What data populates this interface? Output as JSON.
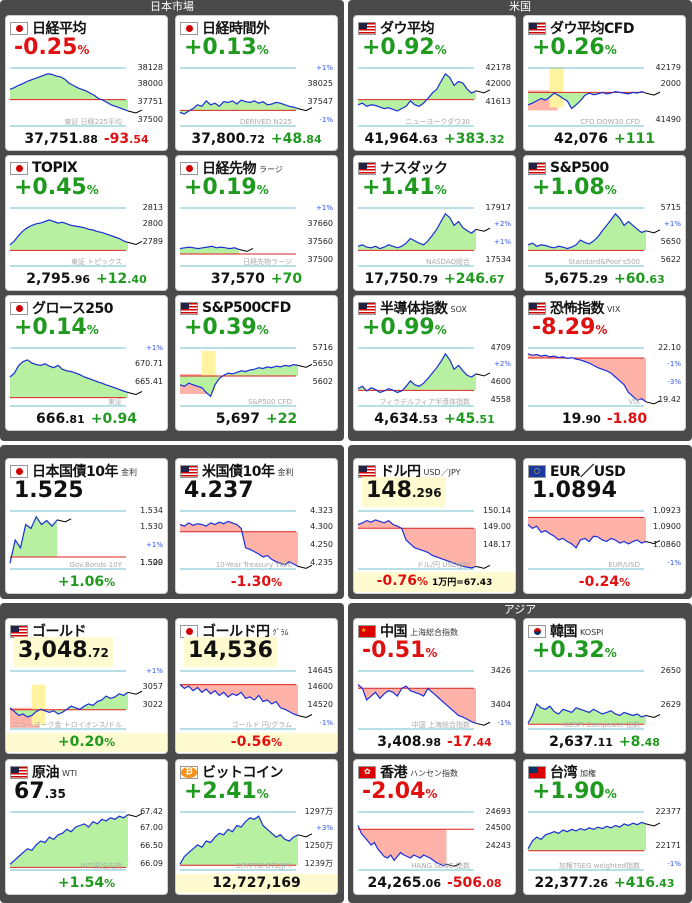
{
  "sections": {
    "japan": "日本市場",
    "us": "米国",
    "asia": "アジア"
  },
  "colors": {
    "up": "#1f9a1f",
    "down": "#e01010",
    "panel": "#4a4a4a"
  },
  "cards": [
    {
      "id": "nikkei",
      "flag": "jp",
      "name": "日経平均",
      "sub": "",
      "pct": "-0.25",
      "pct_unit": "%",
      "dir": "dn",
      "price_int": "37,751",
      "price_dec": ".88",
      "chg_int": "-93",
      "chg_dec": ".54",
      "scale": [
        "38128",
        "38000",
        "37751",
        "37500"
      ],
      "wm": "東証 日経225平均",
      "series": [
        50,
        52,
        55,
        57,
        60,
        62,
        64,
        66,
        68,
        70,
        69,
        67,
        66,
        63,
        58,
        55,
        52,
        50,
        48,
        45,
        42,
        38,
        36,
        33,
        30,
        28,
        26,
        24,
        22
      ],
      "ref": 0.45,
      "fill": "green"
    },
    {
      "id": "nikkei_ot",
      "flag": "jp",
      "name": "日経時間外",
      "sub": "",
      "pct": "+0.13",
      "pct_unit": "%",
      "dir": "up",
      "price_int": "37,800",
      "price_dec": ".72",
      "chg_int": "+48",
      "chg_dec": ".84",
      "scale": [
        "+1%",
        "38025",
        "37547",
        "-1%"
      ],
      "wm": "DERIVED N225",
      "series": [
        20,
        18,
        22,
        25,
        30,
        28,
        35,
        30,
        32,
        28,
        34,
        33,
        35,
        31,
        36,
        34,
        33,
        35,
        32,
        34,
        30,
        31,
        33,
        32,
        30,
        28,
        27,
        25
      ],
      "ref": 0.3,
      "fill": "green"
    },
    {
      "id": "dow",
      "flag": "us",
      "name": "ダウ平均",
      "sub": "",
      "pct": "+0.92",
      "pct_unit": "%",
      "dir": "up",
      "price_int": "41,964",
      "price_dec": ".63",
      "chg_int": "+383",
      "chg_dec": ".32",
      "scale": [
        "42178",
        "42000",
        "41613",
        ""
      ],
      "wm": "ニューヨークダウ30",
      "series": [
        30,
        32,
        28,
        30,
        29,
        27,
        25,
        26,
        24,
        22,
        25,
        28,
        35,
        30,
        28,
        32,
        38,
        45,
        50,
        60,
        70,
        65,
        55,
        60,
        58,
        50,
        45,
        48
      ],
      "ref": 0.45,
      "fill": "green"
    },
    {
      "id": "dowcfd",
      "flag": "us",
      "name": "ダウ平均CFD",
      "sub": "",
      "pct": "+0.26",
      "pct_unit": "%",
      "dir": "up",
      "price_int": "42,076",
      "price_dec": "",
      "chg_int": "+111",
      "chg_dec": "",
      "scale": [
        "42179",
        "2000",
        "",
        "41490"
      ],
      "wm": "CFD DOW30 CFD",
      "series": [
        30,
        32,
        35,
        38,
        36,
        40,
        45,
        42,
        38,
        35,
        25,
        30,
        35,
        42,
        45,
        43,
        44,
        46,
        44,
        45,
        47,
        46,
        45,
        44,
        46,
        45,
        47,
        45
      ],
      "ref": 0.55,
      "fill": "mixed"
    },
    {
      "id": "topix",
      "flag": "jp",
      "name": "TOPIX",
      "sub": "",
      "pct": "+0.45",
      "pct_unit": "%",
      "dir": "up",
      "price_int": "2,795",
      "price_dec": ".96",
      "chg_int": "+12",
      "chg_dec": ".40",
      "scale": [
        "2813",
        "2800",
        "2789",
        ""
      ],
      "wm": "東証 トピックス",
      "series": [
        30,
        35,
        42,
        48,
        52,
        55,
        57,
        58,
        60,
        62,
        60,
        58,
        59,
        57,
        55,
        54,
        53,
        52,
        50,
        49,
        47,
        46,
        44,
        42,
        40,
        38,
        35,
        33
      ],
      "ref": 0.3,
      "fill": "green"
    },
    {
      "id": "nkfut",
      "flag": "jp",
      "name": "日経先物",
      "sub": "ラージ",
      "pct": "+0.19",
      "pct_unit": "%",
      "dir": "up",
      "price_int": "37,570",
      "price_dec": "",
      "chg_int": "+70",
      "chg_dec": "",
      "scale": [
        "+1%",
        "37660",
        "37560",
        "37500"
      ],
      "wm": "日経先物ラージ",
      "series": [
        25,
        26,
        27,
        26,
        25,
        26,
        27,
        28,
        26,
        27,
        26,
        25,
        26,
        24
      ],
      "ref": 0.25,
      "fill": "green",
      "partial": 0.5
    },
    {
      "id": "nasdaq",
      "flag": "us",
      "name": "ナスダック",
      "sub": "",
      "pct": "+1.41",
      "pct_unit": "%",
      "dir": "up",
      "price_int": "17,750",
      "price_dec": ".79",
      "chg_int": "+246",
      "chg_dec": ".67",
      "scale": [
        "17917",
        "+2%",
        "+1%",
        "17534"
      ],
      "wm": "NASDAQ総合",
      "series": [
        28,
        30,
        27,
        26,
        28,
        25,
        27,
        30,
        28,
        26,
        28,
        32,
        38,
        35,
        32,
        30,
        35,
        42,
        50,
        60,
        70,
        65,
        55,
        60,
        52,
        48,
        45,
        50
      ],
      "ref": 0.3,
      "fill": "green"
    },
    {
      "id": "sp500",
      "flag": "us",
      "name": "S&P500",
      "sub": "",
      "pct": "+1.08",
      "pct_unit": "%",
      "dir": "up",
      "price_int": "5,675",
      "price_dec": ".29",
      "chg_int": "+60",
      "chg_dec": ".63",
      "scale": [
        "5715",
        "+1%",
        "5650",
        "5622"
      ],
      "wm": "Standard&Poor's500",
      "series": [
        30,
        32,
        28,
        30,
        29,
        27,
        26,
        28,
        27,
        25,
        27,
        30,
        36,
        33,
        31,
        35,
        40,
        48,
        55,
        62,
        70,
        64,
        55,
        60,
        55,
        50,
        46,
        48
      ],
      "ref": 0.3,
      "fill": "green"
    },
    {
      "id": "growth",
      "flag": "jp",
      "name": "グロース250",
      "sub": "",
      "pct": "+0.14",
      "pct_unit": "%",
      "dir": "up",
      "price_int": "666",
      "price_dec": ".81",
      "chg_int": "+0.94",
      "chg_dec": "",
      "scale": [
        "+1%",
        "670.71",
        "665.41",
        ""
      ],
      "wm": "東証",
      "series": [
        40,
        45,
        55,
        60,
        62,
        58,
        56,
        55,
        57,
        54,
        52,
        55,
        50,
        48,
        47,
        45,
        43,
        40,
        38,
        36,
        34,
        32,
        30,
        28,
        26,
        24,
        22,
        20
      ],
      "ref": 0.2,
      "fill": "green"
    },
    {
      "id": "spcfd",
      "flag": "us",
      "name": "S&P500CFD",
      "sub": "",
      "pct": "+0.39",
      "pct_unit": "%",
      "dir": "up",
      "price_int": "5,697",
      "price_dec": "",
      "chg_int": "+22",
      "chg_dec": "",
      "scale": [
        "5716",
        "5650",
        "5602",
        ""
      ],
      "wm": "S&P500 CFD",
      "series": [
        30,
        28,
        32,
        30,
        28,
        26,
        20,
        15,
        30,
        38,
        42,
        45,
        44,
        46,
        48,
        47,
        49,
        50,
        52,
        51,
        53,
        52,
        54,
        53,
        55,
        54,
        56,
        55
      ],
      "ref": 0.5,
      "fill": "mixed"
    },
    {
      "id": "sox",
      "flag": "us",
      "name": "半導体指数",
      "sub": "SOX",
      "pct": "+0.99",
      "pct_unit": "%",
      "dir": "up",
      "price_int": "4,634",
      "price_dec": ".53",
      "chg_int": "+45",
      "chg_dec": ".51",
      "scale": [
        "4709",
        "+2%",
        "4600",
        "4558"
      ],
      "wm": "フィラデルフィア半導体指数",
      "series": [
        25,
        28,
        22,
        26,
        24,
        20,
        22,
        25,
        23,
        20,
        22,
        28,
        35,
        30,
        28,
        32,
        38,
        45,
        52,
        60,
        70,
        62,
        50,
        55,
        48,
        42,
        40,
        44
      ],
      "ref": 0.3,
      "fill": "green"
    },
    {
      "id": "vix",
      "flag": "us",
      "name": "恐怖指数",
      "sub": "VIX",
      "pct": "-8.29",
      "pct_unit": "%",
      "dir": "dn",
      "price_int": "19",
      "price_dec": ".90",
      "chg_int": "-1.80",
      "chg_dec": "",
      "scale": [
        "22.10",
        "-1%",
        "-3%",
        "19.42"
      ],
      "wm": "VIX",
      "series": [
        70,
        68,
        69,
        67,
        68,
        66,
        67,
        65,
        66,
        64,
        65,
        63,
        62,
        60,
        58,
        55,
        52,
        50,
        48,
        45,
        40,
        35,
        30,
        20,
        15,
        10,
        12,
        8
      ],
      "ref": 0.75,
      "fill": "red"
    },
    {
      "id": "jgb",
      "flag": "jp",
      "name": "日本国債10年",
      "sub": "金利",
      "pct": "",
      "pct_unit": "",
      "dir": "bk",
      "price_int": "1.525",
      "price_dec": "",
      "chg_int": "+1.06",
      "chg_dec": "",
      "chg_unit": "%",
      "chg_dir": "up",
      "scale": [
        "1.534",
        "1.530",
        "+1%",
        "1.520",
        "1.509"
      ],
      "wm": "Gov.Bonds 10Y",
      "series": [
        10,
        40,
        30,
        60,
        55,
        70,
        60,
        65,
        58,
        66
      ],
      "ref": 0.25,
      "fill": "green",
      "partial": 0.4
    },
    {
      "id": "ust",
      "flag": "us",
      "name": "米国債10年",
      "sub": "金利",
      "pct": "",
      "pct_unit": "",
      "dir": "bk",
      "price_int": "4.237",
      "price_dec": "",
      "chg_int": "-1.30",
      "chg_dec": "",
      "chg_unit": "%",
      "chg_dir": "dn",
      "scale": [
        "4.323",
        "4.300",
        "4.250",
        "4.235"
      ],
      "wm": "10-Year Treasury Yield",
      "series": [
        60,
        58,
        62,
        59,
        61,
        60,
        58,
        62,
        60,
        63,
        61,
        64,
        62,
        60,
        55,
        30,
        28,
        25,
        22,
        18,
        20,
        15,
        12,
        10,
        8,
        12,
        9,
        6
      ],
      "ref": 0.6,
      "fill": "red"
    },
    {
      "id": "usdjpy",
      "flag": "us",
      "name": "ドル円",
      "sub": "USD／JPY",
      "pct": "",
      "pct_unit": "",
      "dir": "bk",
      "price_int": "148",
      "price_dec": ".296",
      "chg_int": "-0.76",
      "chg_dec": "",
      "chg_unit": "%",
      "chg_dir": "dn",
      "extra": "1万円=67.43",
      "scale": [
        "150.14",
        "149.00",
        "148.17",
        ""
      ],
      "wm": "ドル/円 USD/JPY",
      "series": [
        60,
        62,
        65,
        63,
        66,
        64,
        62,
        65,
        60,
        58,
        55,
        40,
        35,
        30,
        28,
        26,
        24,
        20,
        18,
        16,
        14,
        12,
        10,
        8,
        6,
        5,
        4,
        6
      ],
      "ref": 0.65,
      "fill": "red",
      "yellow": true
    },
    {
      "id": "eurusd",
      "flag": "eu",
      "name": "EUR／USD",
      "sub": "",
      "pct": "",
      "pct_unit": "",
      "dir": "bk",
      "price_int": "1.0894",
      "price_dec": "",
      "chg_int": "-0.24",
      "chg_dec": "",
      "chg_unit": "%",
      "chg_dir": "dn",
      "scale": [
        "1.0923",
        "1.0900",
        "1.0860",
        "-1%"
      ],
      "wm": "EUR/USD",
      "series": [
        60,
        55,
        58,
        50,
        52,
        48,
        45,
        40,
        42,
        38,
        35,
        30,
        40,
        42,
        38,
        45,
        44,
        40,
        38,
        42,
        40,
        36,
        38,
        35,
        38,
        40,
        36,
        38
      ],
      "ref": 0.8,
      "fill": "red"
    },
    {
      "id": "gold",
      "flag": "us",
      "name": "ゴールド",
      "sub": "",
      "pct": "",
      "pct_unit": "",
      "dir": "bk",
      "price_int": "3,048",
      "price_dec": ".72",
      "chg_int": "+0.20",
      "chg_dec": "",
      "chg_unit": "%",
      "chg_dir": "up",
      "scale": [
        "+1%",
        "3057",
        "3022",
        ""
      ],
      "wm": "ニューヨーク金 トロイオンス/ドル",
      "series": [
        30,
        25,
        20,
        22,
        18,
        20,
        25,
        28,
        26,
        24,
        26,
        22,
        24,
        28,
        32,
        30,
        28,
        32,
        35,
        33,
        38,
        40,
        45,
        42,
        44,
        48,
        46,
        50
      ],
      "ref": 0.35,
      "fill": "mixed",
      "yellow": true
    },
    {
      "id": "goldjpy",
      "flag": "jp",
      "name": "ゴールド円",
      "sub": "ｸﾞﾗﾑ",
      "pct": "",
      "pct_unit": "",
      "dir": "bk",
      "price_int": "14,536",
      "price_dec": "",
      "chg_int": "-0.56",
      "chg_dec": "",
      "chg_unit": "%",
      "chg_dir": "dn",
      "scale": [
        "14645",
        "14600",
        "14520",
        "-1%"
      ],
      "wm": "ゴールド 円/グラム",
      "series": [
        60,
        55,
        58,
        52,
        56,
        50,
        54,
        48,
        52,
        46,
        50,
        44,
        48,
        46,
        50,
        42,
        44,
        40,
        46,
        38,
        40,
        35,
        38,
        30,
        28,
        25,
        22,
        20
      ],
      "ref": 0.7,
      "fill": "red",
      "yellow": true
    },
    {
      "id": "china",
      "flag": "cn",
      "name": "中国",
      "sub": "上海総合指数",
      "pct": "-0.51",
      "pct_unit": "%",
      "dir": "dn",
      "price_int": "3,408",
      "price_dec": ".98",
      "chg_int": "-17",
      "chg_dec": ".44",
      "scale": [
        "3426",
        "",
        "3404",
        "-1%"
      ],
      "wm": "中国 上海総合指数",
      "series": [
        60,
        55,
        40,
        45,
        50,
        42,
        48,
        52,
        50,
        45,
        55,
        58,
        52,
        50,
        48,
        45,
        55,
        50,
        45,
        40,
        35,
        30,
        25,
        20,
        18,
        15,
        12,
        10
      ],
      "ref": 0.65,
      "fill": "red"
    },
    {
      "id": "korea",
      "flag": "kr",
      "name": "韓国",
      "sub": "KOSPI",
      "pct": "+0.32",
      "pct_unit": "%",
      "dir": "up",
      "price_int": "2,637",
      "price_dec": ".11",
      "chg_int": "+8",
      "chg_dec": ".48",
      "scale": [
        "2650",
        "",
        "2629",
        ""
      ],
      "wm": "KOSPI Composite 指数",
      "series": [
        10,
        20,
        35,
        30,
        28,
        32,
        25,
        22,
        28,
        26,
        24,
        30,
        28,
        26,
        24,
        28,
        25,
        22,
        24,
        26,
        22,
        20,
        24,
        22,
        20,
        22,
        18,
        20
      ],
      "ref": 0.15,
      "fill": "green"
    },
    {
      "id": "oil",
      "flag": "us",
      "name": "原油",
      "sub": "WTI",
      "pct": "",
      "pct_unit": "",
      "dir": "bk",
      "price_int": "67",
      "price_dec": ".35",
      "chg_int": "+1.54",
      "chg_dec": "",
      "chg_unit": "%",
      "chg_dir": "up",
      "scale": [
        "67.42",
        "67.00",
        "66.50",
        "66.09"
      ],
      "wm": "WTI原油先物",
      "series": [
        10,
        15,
        20,
        25,
        30,
        28,
        35,
        40,
        38,
        45,
        42,
        48,
        50,
        55,
        52,
        58,
        60,
        62,
        58,
        65,
        62,
        68,
        66,
        70,
        68,
        72,
        70,
        74
      ],
      "ref": 0.12,
      "fill": "green"
    },
    {
      "id": "btc",
      "flag": "btc",
      "name": "ビットコイン",
      "sub": "",
      "pct": "+2.41",
      "pct_unit": "%",
      "dir": "up",
      "price_int": "12,727,169",
      "price_dec": "",
      "chg_int": "",
      "chg_dec": "",
      "scale": [
        "1297万",
        "+3%",
        "1250万",
        "1239万"
      ],
      "wm": "CRYPTO BTC/JPY",
      "series": [
        10,
        20,
        25,
        30,
        35,
        32,
        40,
        38,
        45,
        50,
        48,
        55,
        52,
        60,
        58,
        65,
        70,
        68,
        72,
        60,
        55,
        50,
        45,
        48,
        42,
        40,
        45,
        48
      ],
      "ref": 0.15,
      "fill": "green",
      "yellow": true
    },
    {
      "id": "hk",
      "flag": "hk",
      "name": "香港",
      "sub": "ハンセン指数",
      "pct": "-2.04",
      "pct_unit": "%",
      "dir": "dn",
      "price_int": "24,265",
      "price_dec": ".06",
      "chg_int": "-506",
      "chg_dec": ".08",
      "scale": [
        "24693",
        "24500",
        "24243",
        ""
      ],
      "wm": "HANG SENG 指数",
      "series": [
        60,
        50,
        45,
        40,
        35,
        38,
        30,
        25,
        20,
        18,
        22,
        15,
        20,
        25,
        22,
        20,
        18,
        22,
        20,
        18,
        22,
        20,
        18,
        15,
        12,
        10,
        8,
        10
      ],
      "ref": 0.65,
      "fill": "red",
      "partial": 0.75
    },
    {
      "id": "taiwan",
      "flag": "tw",
      "name": "台湾",
      "sub": "加権",
      "pct": "+1.90",
      "pct_unit": "%",
      "dir": "up",
      "price_int": "22,377",
      "price_dec": ".26",
      "chg_int": "+416",
      "chg_dec": ".43",
      "scale": [
        "22377",
        "",
        "22171",
        "-1%"
      ],
      "wm": "加権TSEG weighted指数",
      "series": [
        30,
        40,
        45,
        42,
        48,
        50,
        52,
        50,
        54,
        52,
        55,
        53,
        56,
        54,
        57,
        55,
        58,
        56,
        59,
        57,
        60,
        58,
        62,
        60,
        63,
        61,
        64,
        62
      ],
      "ref": 0.35,
      "fill": "green"
    }
  ]
}
